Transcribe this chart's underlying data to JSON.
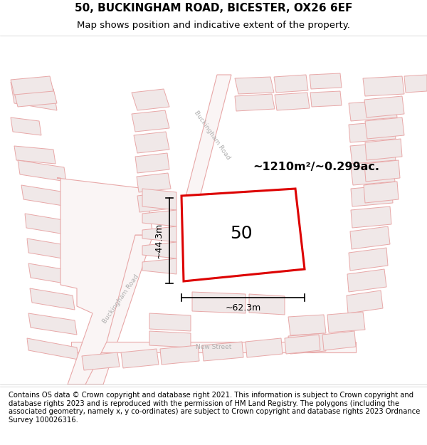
{
  "title_line1": "50, BUCKINGHAM ROAD, BICESTER, OX26 6EF",
  "title_line2": "Map shows position and indicative extent of the property.",
  "footer_text": "Contains OS data © Crown copyright and database right 2021. This information is subject to Crown copyright and database rights 2023 and is reproduced with the permission of HM Land Registry. The polygons (including the associated geometry, namely x, y co-ordinates) are subject to Crown copyright and database rights 2023 Ordnance Survey 100026316.",
  "map_background": "#ffffff",
  "road_color": "#e8a8a8",
  "building_outline_color": "#e8a8a8",
  "building_fill_color": "#f0e8e8",
  "target_outline_color": "#dd0000",
  "target_fill_color": "#ffffff",
  "area_text": "~1210m²/~0.299ac.",
  "label_50": "50",
  "dim_width": "~62.3m",
  "dim_height": "~44.3m",
  "road_label_color": "#aaaaaa",
  "title_fontsize": 11,
  "subtitle_fontsize": 9.5,
  "footer_fontsize": 7.2
}
